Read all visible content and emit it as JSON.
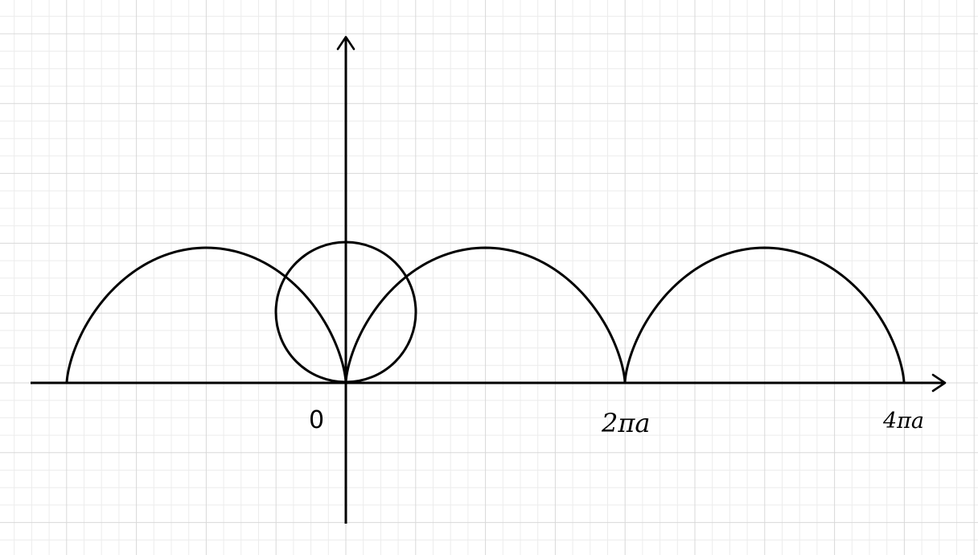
{
  "diagram": {
    "labels": {
      "origin": "0",
      "two_pi_a": "2πa",
      "four_pi_a": "4πa"
    },
    "colors": {
      "background": "#ffffff",
      "grid_minor": "#ececec",
      "grid_major": "#d8d8d8",
      "ink": "#000000"
    }
  }
}
